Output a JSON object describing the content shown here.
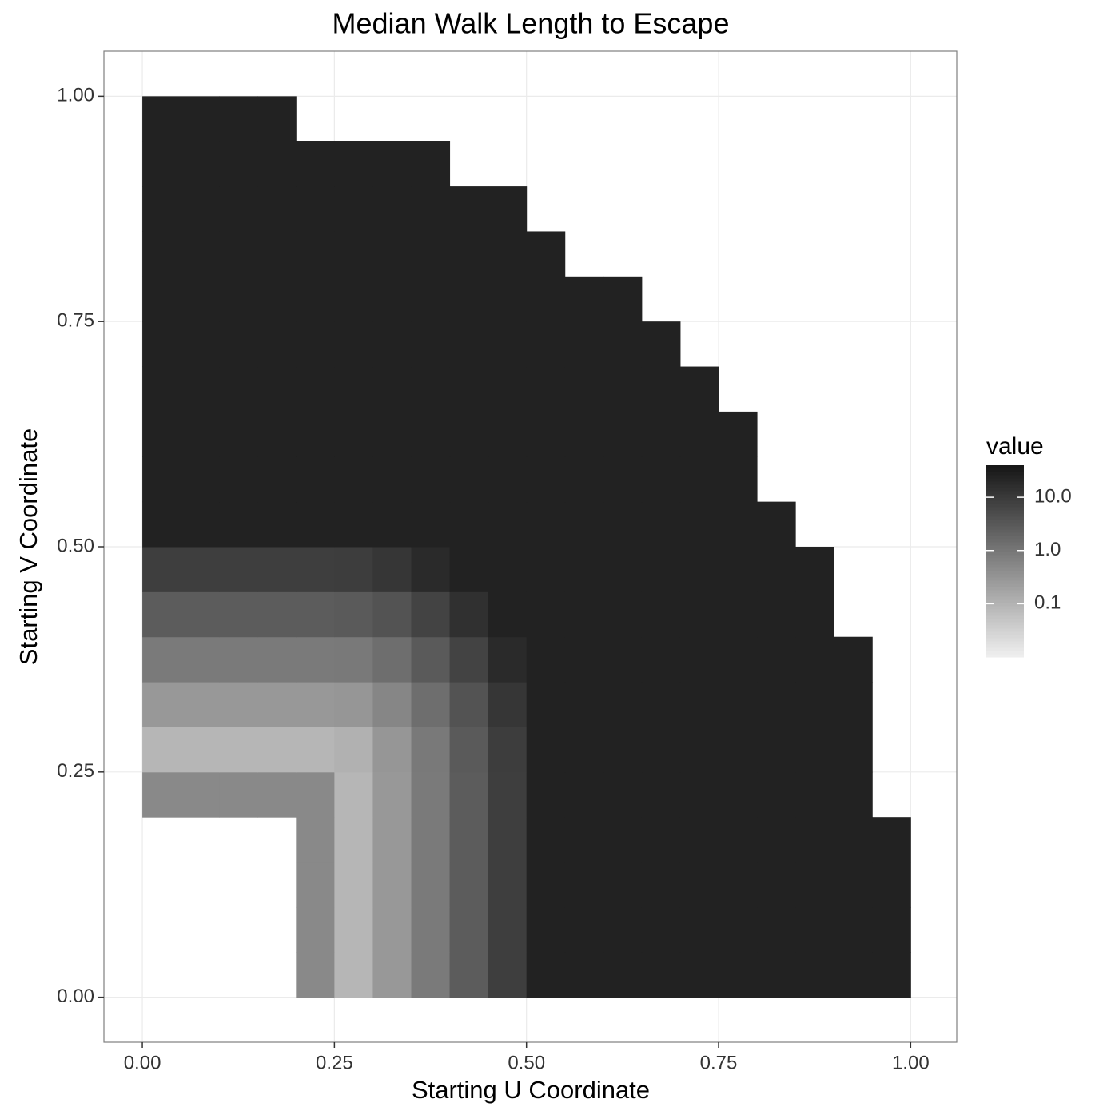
{
  "chart_data": {
    "type": "heatmap",
    "title": "Median Walk Length to Escape",
    "xlabel": "Starting U Coordinate",
    "ylabel": "Starting V Coordinate",
    "legend_title": "value",
    "x": [
      0.025,
      0.075,
      0.125,
      0.175,
      0.225,
      0.275,
      0.325,
      0.375,
      0.425,
      0.475,
      0.525,
      0.575,
      0.625,
      0.675,
      0.725,
      0.775,
      0.825,
      0.875,
      0.925,
      0.975
    ],
    "y": [
      0.025,
      0.075,
      0.125,
      0.175,
      0.225,
      0.275,
      0.325,
      0.375,
      0.425,
      0.475,
      0.525,
      0.575,
      0.625,
      0.675,
      0.725,
      0.775,
      0.825,
      0.875,
      0.925,
      0.975
    ],
    "z": [
      [
        null,
        null,
        null,
        null,
        0.5,
        0.09,
        0.28,
        0.89,
        2.8,
        8.9,
        25,
        25,
        25,
        25,
        25,
        25,
        25,
        25,
        25,
        25
      ],
      [
        null,
        null,
        null,
        null,
        0.5,
        0.09,
        0.28,
        0.89,
        2.8,
        8.9,
        25,
        25,
        25,
        25,
        25,
        25,
        25,
        25,
        25,
        25
      ],
      [
        null,
        null,
        null,
        null,
        0.5,
        0.09,
        0.28,
        0.89,
        2.8,
        8.9,
        25,
        25,
        25,
        25,
        25,
        25,
        25,
        25,
        25,
        25
      ],
      [
        null,
        null,
        null,
        null,
        0.5,
        0.09,
        0.28,
        0.89,
        2.8,
        8.9,
        25,
        25,
        25,
        25,
        25,
        25,
        25,
        25,
        25,
        25
      ],
      [
        0.5,
        0.5,
        0.5,
        0.5,
        0.5,
        0.09,
        0.28,
        0.89,
        2.8,
        8.9,
        25,
        25,
        25,
        25,
        25,
        25,
        25,
        25,
        25,
        null
      ],
      [
        0.09,
        0.09,
        0.09,
        0.09,
        0.09,
        0.11,
        0.31,
        0.93,
        3.0,
        9.1,
        25,
        25,
        25,
        25,
        25,
        25,
        25,
        25,
        25,
        null
      ],
      [
        0.28,
        0.28,
        0.28,
        0.28,
        0.28,
        0.31,
        0.57,
        1.4,
        4.0,
        11.7,
        25,
        25,
        25,
        25,
        25,
        25,
        25,
        25,
        25,
        null
      ],
      [
        0.89,
        0.89,
        0.89,
        0.89,
        0.89,
        0.93,
        1.4,
        3.0,
        7.1,
        18.7,
        25,
        25,
        25,
        25,
        25,
        25,
        25,
        25,
        25,
        null
      ],
      [
        2.8,
        2.8,
        2.8,
        2.8,
        2.8,
        3.0,
        4.0,
        7.1,
        14.8,
        25,
        25,
        25,
        25,
        25,
        25,
        25,
        25,
        25,
        null,
        null
      ],
      [
        8.9,
        8.9,
        8.9,
        8.9,
        8.9,
        9.1,
        11.7,
        18.7,
        25,
        25,
        25,
        25,
        25,
        25,
        25,
        25,
        25,
        25,
        null,
        null
      ],
      [
        25,
        25,
        25,
        25,
        25,
        25,
        25,
        25,
        25,
        25,
        25,
        25,
        25,
        25,
        25,
        25,
        25,
        null,
        null,
        null
      ],
      [
        25,
        25,
        25,
        25,
        25,
        25,
        25,
        25,
        25,
        25,
        25,
        25,
        25,
        25,
        25,
        25,
        null,
        null,
        null,
        null
      ],
      [
        25,
        25,
        25,
        25,
        25,
        25,
        25,
        25,
        25,
        25,
        25,
        25,
        25,
        25,
        25,
        25,
        null,
        null,
        null,
        null
      ],
      [
        25,
        25,
        25,
        25,
        25,
        25,
        25,
        25,
        25,
        25,
        25,
        25,
        25,
        25,
        25,
        null,
        null,
        null,
        null,
        null
      ],
      [
        25,
        25,
        25,
        25,
        25,
        25,
        25,
        25,
        25,
        25,
        25,
        25,
        25,
        25,
        null,
        null,
        null,
        null,
        null,
        null
      ],
      [
        25,
        25,
        25,
        25,
        25,
        25,
        25,
        25,
        25,
        25,
        25,
        25,
        25,
        null,
        null,
        null,
        null,
        null,
        null,
        null
      ],
      [
        25,
        25,
        25,
        25,
        25,
        25,
        25,
        25,
        25,
        25,
        25,
        null,
        null,
        null,
        null,
        null,
        null,
        null,
        null,
        null
      ],
      [
        25,
        25,
        25,
        25,
        25,
        25,
        25,
        25,
        25,
        25,
        null,
        null,
        null,
        null,
        null,
        null,
        null,
        null,
        null,
        null
      ],
      [
        25,
        25,
        25,
        25,
        25,
        25,
        25,
        25,
        null,
        null,
        null,
        null,
        null,
        null,
        null,
        null,
        null,
        null,
        null,
        null
      ],
      [
        25,
        25,
        25,
        25,
        null,
        null,
        null,
        null,
        null,
        null,
        null,
        null,
        null,
        null,
        null,
        null,
        null,
        null,
        null,
        null
      ]
    ],
    "xlim": [
      -0.05,
      1.06
    ],
    "ylim": [
      -0.05,
      1.05
    ],
    "xticks": [
      {
        "value": 0,
        "label": "0.00"
      },
      {
        "value": 0.25,
        "label": "0.25"
      },
      {
        "value": 0.5,
        "label": "0.50"
      },
      {
        "value": 0.75,
        "label": "0.75"
      },
      {
        "value": 1,
        "label": "1.00"
      }
    ],
    "yticks": [
      {
        "value": 0,
        "label": "0.00"
      },
      {
        "value": 0.25,
        "label": "0.25"
      },
      {
        "value": 0.5,
        "label": "0.50"
      },
      {
        "value": 0.75,
        "label": "0.75"
      },
      {
        "value": 1,
        "label": "1.00"
      }
    ],
    "colorbar_lim": [
      0.01,
      40
    ],
    "colorbar_ticks": [
      {
        "value": 10,
        "label": "10.0"
      },
      {
        "value": 1,
        "label": "1.0"
      },
      0.1
    ],
    "color_log_scale": true,
    "low_color": "#f0f0f0",
    "high_color": "#161616",
    "grid": true
  }
}
